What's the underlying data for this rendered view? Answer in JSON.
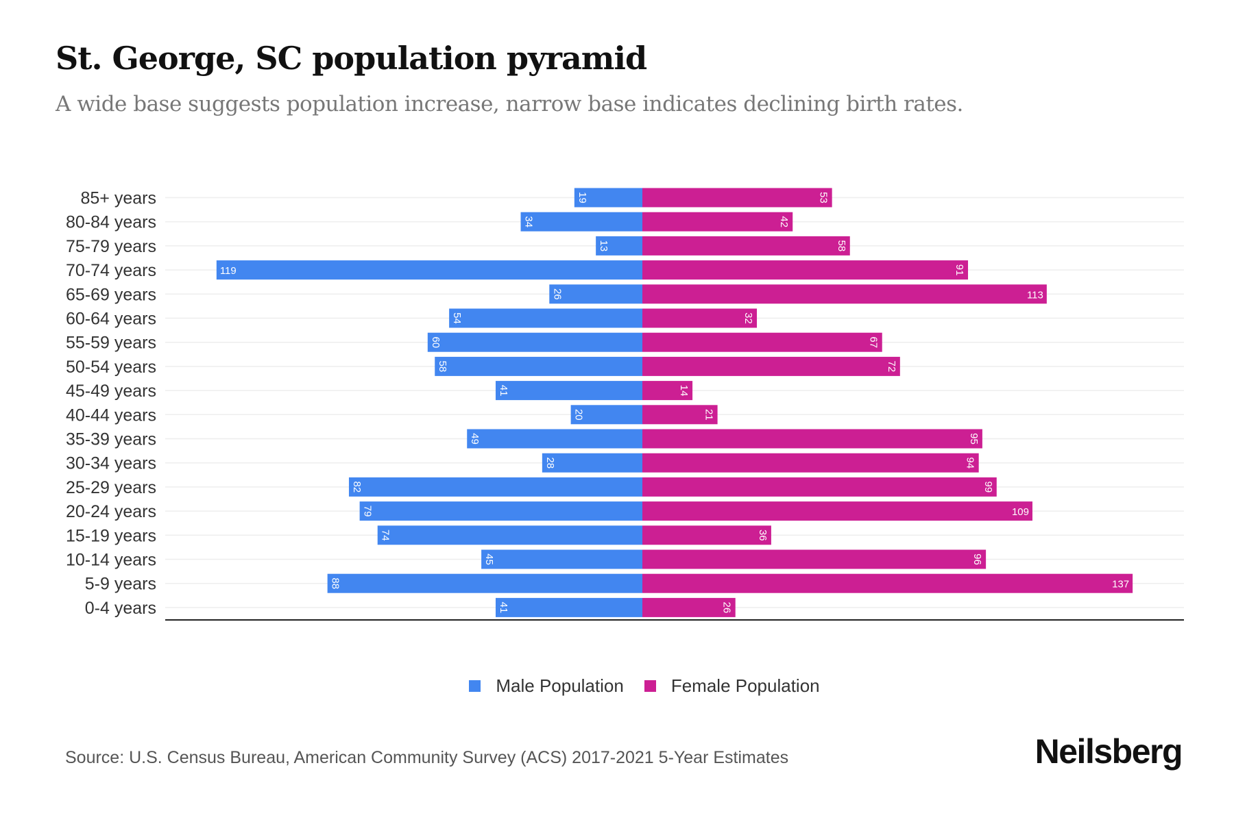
{
  "title": "St. George, SC population pyramid",
  "subtitle": "A wide base suggests population increase, narrow base indicates declining birth rates.",
  "source": "Source: U.S. Census Bureau, American Community Survey (ACS) 2017-2021 5-Year Estimates",
  "logo": "Neilsberg",
  "colors": {
    "male": "#4286f0",
    "female": "#cc1f93"
  },
  "chart_data": {
    "type": "bar",
    "orientation": "horizontal-pyramid",
    "categories": [
      "85+ years",
      "80-84 years",
      "75-79 years",
      "70-74 years",
      "65-69 years",
      "60-64 years",
      "55-59 years",
      "50-54 years",
      "45-49 years",
      "40-44 years",
      "35-39 years",
      "30-34 years",
      "25-29 years",
      "20-24 years",
      "15-19 years",
      "10-14 years",
      "5-9 years",
      "0-4 years"
    ],
    "series": [
      {
        "name": "Male Population",
        "values": [
          19,
          34,
          13,
          119,
          26,
          54,
          60,
          58,
          41,
          20,
          49,
          28,
          82,
          79,
          74,
          45,
          88,
          41
        ]
      },
      {
        "name": "Female Population",
        "values": [
          53,
          42,
          58,
          91,
          113,
          32,
          67,
          72,
          14,
          21,
          95,
          94,
          99,
          109,
          36,
          96,
          137,
          26
        ]
      }
    ],
    "legend": "bottom-center",
    "grid": true
  }
}
